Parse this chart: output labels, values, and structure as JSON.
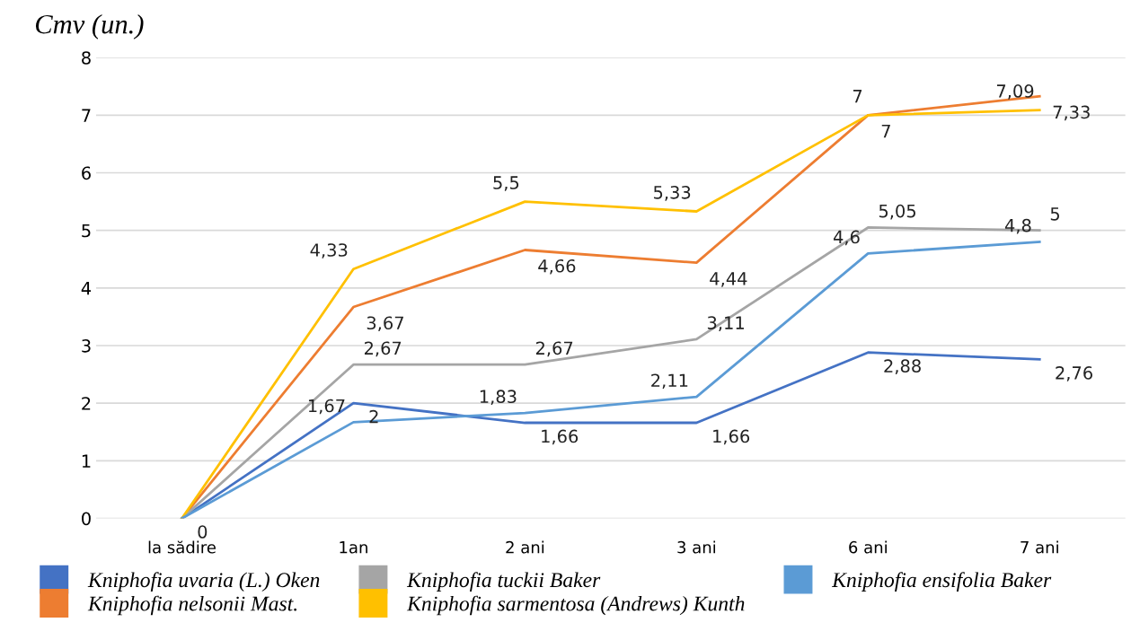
{
  "chart_data": {
    "type": "line",
    "ylabel": "Cmv (un.)",
    "categories": [
      "la sădire",
      "1an",
      "2 ani",
      "3 ani",
      "6 ani",
      "7 ani"
    ],
    "ylim": [
      0,
      8
    ],
    "yticks": [
      0,
      1,
      2,
      3,
      4,
      5,
      6,
      7,
      8
    ],
    "grid": "y",
    "legend": "bottom",
    "marker": "none",
    "line_style": "solid",
    "series": [
      {
        "name": "Kniphofia uvaria (L.) Oken",
        "color": "#4472c4",
        "values": [
          0,
          2,
          1.66,
          1.66,
          2.88,
          2.76
        ],
        "value_labels": [
          "0",
          "2",
          "1,66",
          "1,66",
          "2,88",
          "2,76"
        ]
      },
      {
        "name": "Kniphofia nelsonii Mast.",
        "color": "#ed7d31",
        "values": [
          0,
          3.67,
          4.66,
          4.44,
          7,
          7.33
        ],
        "value_labels": [
          null,
          "3,67",
          "4,66",
          "4,44",
          "7",
          "7,33"
        ]
      },
      {
        "name": "Kniphofia tuckii Baker",
        "color": "#a5a5a5",
        "values": [
          0,
          2.67,
          2.67,
          3.11,
          5.05,
          5
        ],
        "value_labels": [
          null,
          "2,67",
          "2,67",
          "3,11",
          "5,05",
          "5"
        ]
      },
      {
        "name": "Kniphofia sarmentosa (Andrews) Kunth",
        "color": "#ffc000",
        "values": [
          0,
          4.33,
          5.5,
          5.33,
          7,
          7.09
        ],
        "value_labels": [
          null,
          "4,33",
          "5,5",
          "5,33",
          "7",
          "7,09"
        ]
      },
      {
        "name": "Kniphofia ensifolia Baker",
        "color": "#5b9bd5",
        "values": [
          0,
          1.67,
          1.83,
          2.11,
          4.6,
          4.8
        ],
        "value_labels": [
          null,
          "1,67",
          "1,83",
          "2,11",
          "4,6",
          "4,8"
        ]
      }
    ]
  }
}
